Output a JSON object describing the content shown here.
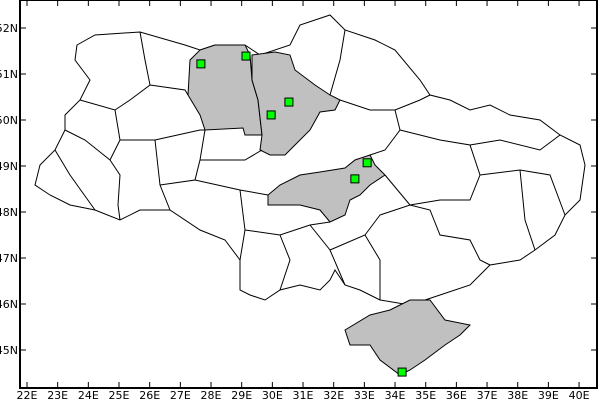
{
  "map": {
    "projection": "lat-lon grid",
    "lon_range": [
      22,
      40
    ],
    "lat_range": [
      44.2,
      52.6
    ],
    "x_ticks": [
      "22E",
      "23E",
      "24E",
      "25E",
      "26E",
      "27E",
      "28E",
      "29E",
      "30E",
      "31E",
      "32E",
      "33E",
      "34E",
      "35E",
      "36E",
      "37E",
      "38E",
      "39E",
      "40E"
    ],
    "y_ticks": [
      "45N",
      "46N",
      "47N",
      "48N",
      "49N",
      "50N",
      "51N",
      "52N"
    ],
    "colors": {
      "highlighted_region": "#c0c0c0",
      "region_border": "#000000",
      "marker_fill": "#00ff00",
      "marker_border": "#000000",
      "background": "#ffffff"
    },
    "markers": [
      {
        "lon": 27.67,
        "lat": 51.22
      },
      {
        "lon": 29.14,
        "lat": 51.39
      },
      {
        "lon": 29.96,
        "lat": 50.11
      },
      {
        "lon": 30.54,
        "lat": 50.39
      },
      {
        "lon": 32.69,
        "lat": 48.72
      },
      {
        "lon": 33.09,
        "lat": 49.07
      },
      {
        "lon": 34.23,
        "lat": 44.52
      }
    ]
  }
}
